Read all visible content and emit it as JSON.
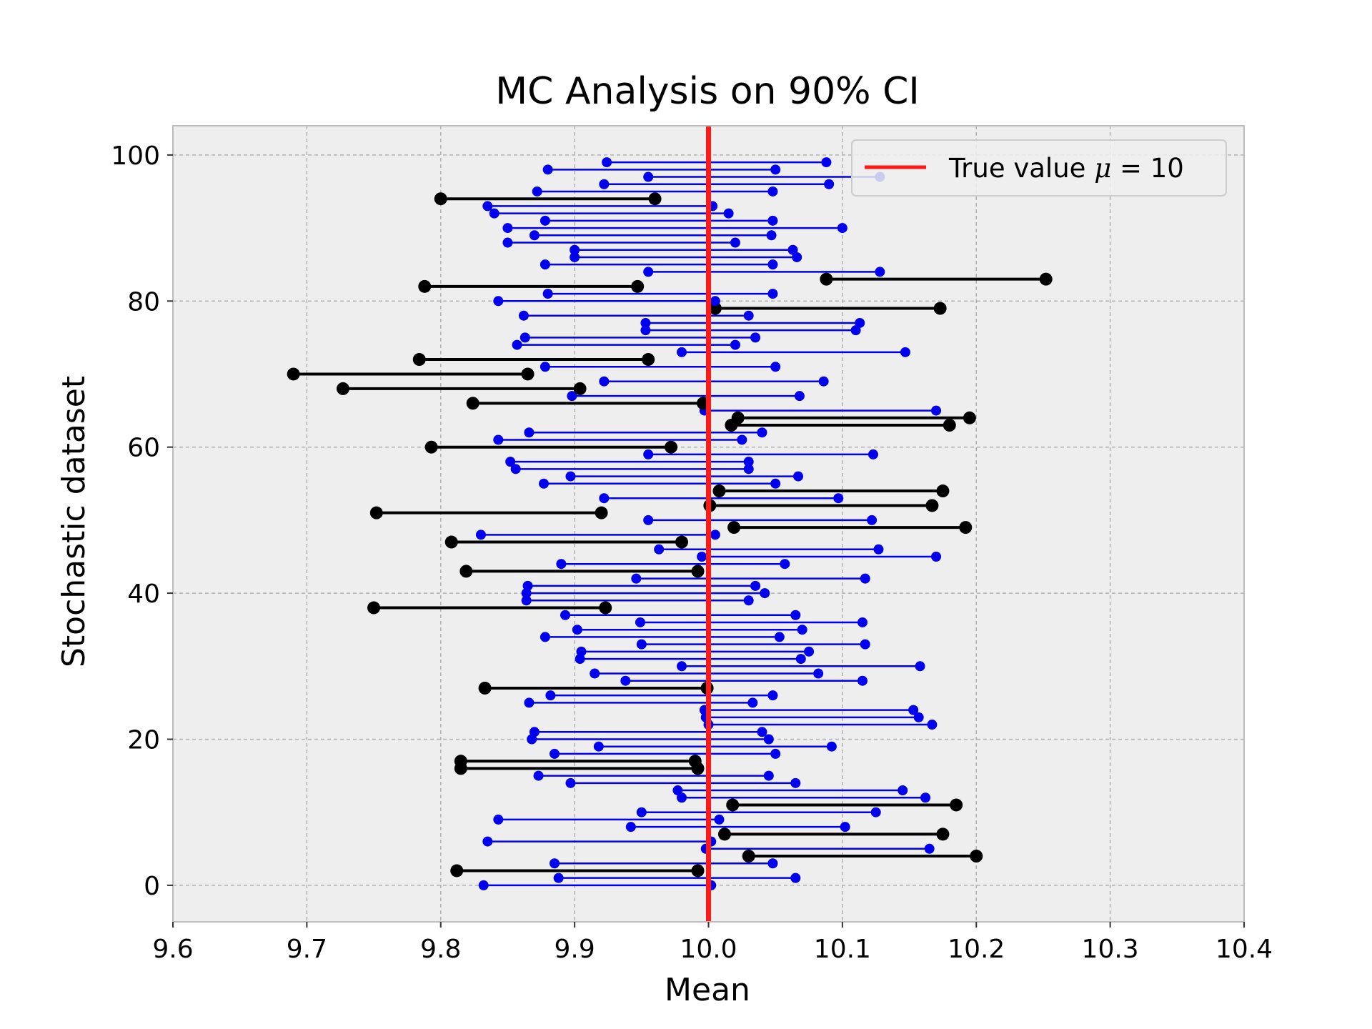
{
  "chart_data": {
    "type": "interval",
    "title": "MC Analysis on 90% CI",
    "xlabel": "Mean",
    "ylabel": "Stochastic dataset",
    "xlim": [
      9.6,
      10.4
    ],
    "ylim": [
      -5,
      104
    ],
    "x_ticks": [
      9.6,
      9.7,
      9.8,
      9.9,
      10.0,
      10.1,
      10.2,
      10.3,
      10.4
    ],
    "x_tick_labels": [
      "9.6",
      "9.7",
      "9.8",
      "9.9",
      "10.0",
      "10.1",
      "10.2",
      "10.3",
      "10.4"
    ],
    "y_ticks": [
      0,
      20,
      40,
      60,
      80,
      100
    ],
    "y_tick_labels": [
      "0",
      "20",
      "40",
      "60",
      "80",
      "100"
    ],
    "grid": true,
    "legend_position": "top-right",
    "legend": {
      "label_prefix": "True value ",
      "label_symbol": "μ",
      "label_suffix": " = 10"
    },
    "true_value": 10.0,
    "colors": {
      "contains_true": "#0000ee",
      "misses_true": "#000000",
      "true_line": "#ff1a1a",
      "axes_bg": "#eeeeee",
      "grid": "#b0b0b0",
      "axes_edge": "#bcbcbc"
    },
    "intervals": [
      [
        9.832,
        10.002
      ],
      [
        9.888,
        10.065
      ],
      [
        9.812,
        9.992
      ],
      [
        9.885,
        10.048
      ],
      [
        10.03,
        10.2
      ],
      [
        9.998,
        10.165
      ],
      [
        9.835,
        10.002
      ],
      [
        10.012,
        10.175
      ],
      [
        9.942,
        10.102
      ],
      [
        9.843,
        10.008
      ],
      [
        9.95,
        10.125
      ],
      [
        10.018,
        10.185
      ],
      [
        9.98,
        10.162
      ],
      [
        9.977,
        10.145
      ],
      [
        9.897,
        10.065
      ],
      [
        9.873,
        10.045
      ],
      [
        9.815,
        9.992
      ],
      [
        9.815,
        9.99
      ],
      [
        9.885,
        10.05
      ],
      [
        9.918,
        10.092
      ],
      [
        9.868,
        10.045
      ],
      [
        9.87,
        10.04
      ],
      [
        10.0,
        10.167
      ],
      [
        9.998,
        10.157
      ],
      [
        9.997,
        10.153
      ],
      [
        9.866,
        10.033
      ],
      [
        9.882,
        10.048
      ],
      [
        9.833,
        9.999
      ],
      [
        9.938,
        10.115
      ],
      [
        9.915,
        10.082
      ],
      [
        9.98,
        10.158
      ],
      [
        9.904,
        10.069
      ],
      [
        9.905,
        10.075
      ],
      [
        9.95,
        10.117
      ],
      [
        9.878,
        10.053
      ],
      [
        9.902,
        10.07
      ],
      [
        9.949,
        10.115
      ],
      [
        9.893,
        10.065
      ],
      [
        9.75,
        9.923
      ],
      [
        9.864,
        10.03
      ],
      [
        9.864,
        10.042
      ],
      [
        9.865,
        10.035
      ],
      [
        9.946,
        10.117
      ],
      [
        9.819,
        9.992
      ],
      [
        9.89,
        10.057
      ],
      [
        9.995,
        10.17
      ],
      [
        9.963,
        10.127
      ],
      [
        9.808,
        9.98
      ],
      [
        9.83,
        10.005
      ],
      [
        10.019,
        10.192
      ],
      [
        9.955,
        10.122
      ],
      [
        9.752,
        9.92
      ],
      [
        10.001,
        10.167
      ],
      [
        9.922,
        10.097
      ],
      [
        10.008,
        10.175
      ],
      [
        9.877,
        10.05
      ],
      [
        9.897,
        10.067
      ],
      [
        9.856,
        10.03
      ],
      [
        9.852,
        10.03
      ],
      [
        9.955,
        10.123
      ],
      [
        9.793,
        9.972
      ],
      [
        9.843,
        10.025
      ],
      [
        9.866,
        10.04
      ],
      [
        10.017,
        10.18
      ],
      [
        10.022,
        10.195
      ],
      [
        9.997,
        10.17
      ],
      [
        9.824,
        9.996
      ],
      [
        9.898,
        10.068
      ],
      [
        9.727,
        9.904
      ],
      [
        9.922,
        10.086
      ],
      [
        9.69,
        9.865
      ],
      [
        9.878,
        10.05
      ],
      [
        9.784,
        9.955
      ],
      [
        9.98,
        10.147
      ],
      [
        9.857,
        10.02
      ],
      [
        9.863,
        10.035
      ],
      [
        9.953,
        10.11
      ],
      [
        9.953,
        10.113
      ],
      [
        9.862,
        10.03
      ],
      [
        10.005,
        10.173
      ],
      [
        9.843,
        10.005
      ],
      [
        9.88,
        10.048
      ],
      [
        9.788,
        9.947
      ],
      [
        10.088,
        10.252
      ],
      [
        9.955,
        10.128
      ],
      [
        9.878,
        10.048
      ],
      [
        9.9,
        10.066
      ],
      [
        9.9,
        10.063
      ],
      [
        9.85,
        10.02
      ],
      [
        9.87,
        10.047
      ],
      [
        9.85,
        10.1
      ],
      [
        9.878,
        10.048
      ],
      [
        9.84,
        10.015
      ],
      [
        9.835,
        10.003
      ],
      [
        9.8,
        9.96
      ],
      [
        9.872,
        10.048
      ],
      [
        9.922,
        10.09
      ],
      [
        9.955,
        10.128
      ],
      [
        9.88,
        10.05
      ],
      [
        9.924,
        10.088
      ]
    ]
  }
}
